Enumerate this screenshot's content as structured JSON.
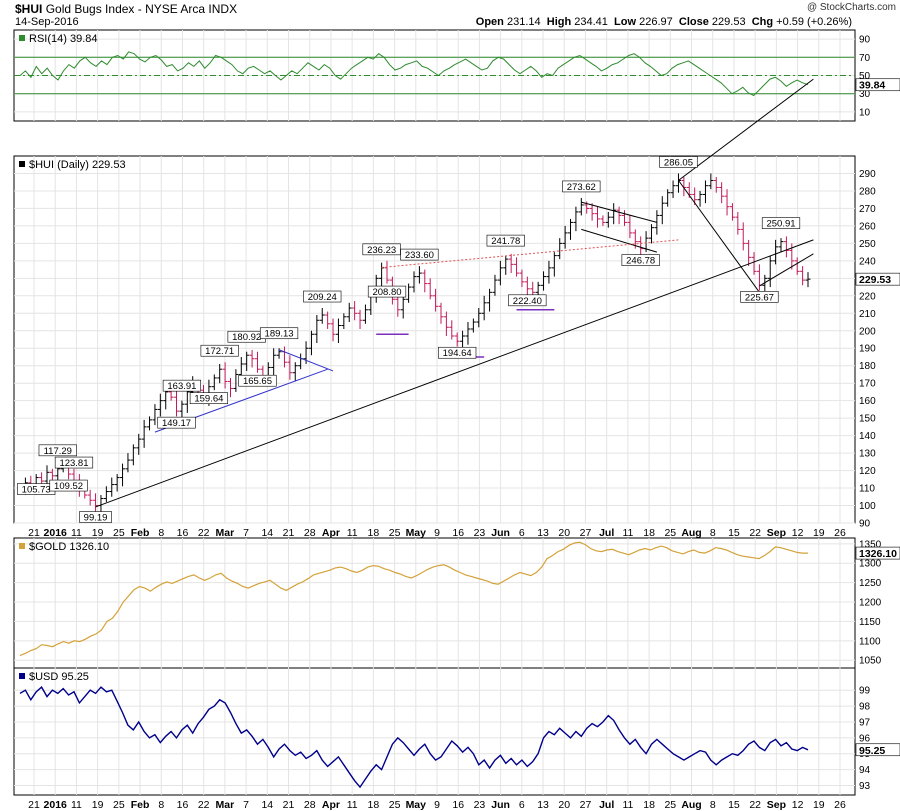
{
  "header": {
    "symbol": "$HUI",
    "name": "Gold Bugs Index - NYSE Arca INDX",
    "date": "14-Sep-2016",
    "open_label": "Open",
    "open": "231.14",
    "high_label": "High",
    "high": "234.41",
    "low_label": "Low",
    "low": "226.97",
    "close_label": "Close",
    "close": "229.53",
    "chg_label": "Chg",
    "chg": "+0.59 (+0.26%)",
    "watermark": "@ StockCharts.com"
  },
  "x_axis": {
    "ticks": [
      "21",
      "2016",
      "11",
      "19",
      "25",
      "Feb",
      "8",
      "16",
      "22",
      "Mar",
      "7",
      "14",
      "21",
      "28",
      "Apr",
      "11",
      "18",
      "25",
      "May",
      "9",
      "16",
      "23",
      "Jun",
      "6",
      "13",
      "20",
      "27",
      "Jul",
      "11",
      "18",
      "25",
      "Aug",
      "8",
      "15",
      "22",
      "Sep",
      "12",
      "19",
      "26"
    ],
    "bold_ticks": [
      "2016",
      "Feb",
      "Mar",
      "Apr",
      "May",
      "Jun",
      "Jul",
      "Aug",
      "Sep"
    ]
  },
  "colors": {
    "rsi": "#2e8b2e",
    "gold": "#d4a23a",
    "usd": "#00008b",
    "up": "#000000",
    "down": "#c2185b",
    "trend": "#000000",
    "blue_line": "#3333cc",
    "purple": "#7b2fbe",
    "red_dotted": "#e05050"
  },
  "chart_data": [
    {
      "type": "line",
      "title": "RSI(14) 39.84",
      "last_label": "39.84",
      "ylim": [
        0,
        100
      ],
      "yticks": [
        10,
        30,
        50,
        70,
        90
      ],
      "levels": [
        70,
        50,
        30
      ],
      "values": [
        50,
        55,
        48,
        60,
        52,
        58,
        50,
        45,
        55,
        62,
        58,
        66,
        70,
        64,
        60,
        66,
        62,
        70,
        72,
        68,
        76,
        74,
        68,
        65,
        70,
        72,
        67,
        60,
        62,
        55,
        58,
        64,
        60,
        66,
        58,
        64,
        72,
        70,
        66,
        62,
        55,
        52,
        58,
        60,
        56,
        52,
        55,
        50,
        45,
        50,
        55,
        52,
        58,
        64,
        60,
        56,
        62,
        58,
        50,
        46,
        52,
        58,
        62,
        66,
        70,
        68,
        74,
        70,
        62,
        56,
        58,
        62,
        64,
        66,
        60,
        58,
        54,
        50,
        55,
        58,
        62,
        65,
        68,
        64,
        60,
        56,
        58,
        66,
        70,
        68,
        62,
        56,
        52,
        56,
        60,
        55,
        48,
        52,
        50,
        58,
        62,
        66,
        70,
        72,
        68,
        64,
        60,
        55,
        58,
        62,
        64,
        68,
        72,
        74,
        70,
        64,
        60,
        55,
        50,
        52,
        58,
        62,
        64,
        66,
        62,
        58,
        54,
        50,
        46,
        42,
        36,
        30,
        33,
        37,
        31,
        28,
        34,
        40,
        46,
        48,
        44,
        38,
        42,
        45,
        42,
        39.84
      ]
    },
    {
      "type": "ohlc",
      "title": "$HUI (Daily) 229.53",
      "last_label": "229.53",
      "ylim": [
        90,
        300
      ],
      "yticks": [
        90,
        100,
        110,
        120,
        130,
        140,
        150,
        160,
        170,
        180,
        190,
        200,
        210,
        220,
        230,
        240,
        250,
        260,
        270,
        280,
        290
      ],
      "closes": [
        109,
        113,
        111,
        116,
        114,
        119,
        117,
        121,
        123,
        118,
        114,
        110,
        106,
        103,
        100,
        104,
        108,
        112,
        116,
        121,
        126,
        133,
        138,
        145,
        149,
        155,
        160,
        165,
        162,
        154,
        158,
        165,
        170,
        166,
        162,
        168,
        173,
        178,
        171,
        167,
        175,
        181,
        186,
        184,
        178,
        174,
        179,
        186,
        188,
        182,
        176,
        180,
        184,
        190,
        198,
        206,
        209,
        204,
        198,
        203,
        208,
        213,
        210,
        206,
        212,
        220,
        230,
        236,
        229,
        218,
        212,
        218,
        225,
        231,
        233,
        227,
        220,
        214,
        208,
        202,
        197,
        194,
        197,
        201,
        205,
        210,
        216,
        222,
        229,
        236,
        241,
        238,
        233,
        228,
        224,
        222,
        226,
        231,
        236,
        243,
        250,
        256,
        262,
        268,
        272,
        270,
        267,
        264,
        262,
        265,
        269,
        266,
        262,
        256,
        251,
        247,
        253,
        259,
        266,
        273,
        279,
        283,
        286,
        282,
        278,
        275,
        278,
        283,
        286,
        282,
        277,
        271,
        265,
        258,
        250,
        242,
        234,
        226,
        230,
        240,
        248,
        251,
        246,
        240,
        234,
        229,
        229.53
      ],
      "labels": [
        {
          "i": 3,
          "text": "105.73",
          "pos": "below"
        },
        {
          "i": 7,
          "text": "117.29",
          "pos": "above"
        },
        {
          "i": 10,
          "text": "123.81",
          "pos": "above"
        },
        {
          "i": 9,
          "text": "109.52",
          "pos": "below"
        },
        {
          "i": 14,
          "text": "99.19",
          "pos": "below"
        },
        {
          "i": 30,
          "text": "163.91",
          "pos": "above"
        },
        {
          "i": 29,
          "text": "149.17",
          "pos": "below"
        },
        {
          "i": 37,
          "text": "172.71",
          "pos": "above"
        },
        {
          "i": 35,
          "text": "159.64",
          "pos": "below"
        },
        {
          "i": 42,
          "text": "180.92",
          "pos": "above"
        },
        {
          "i": 44,
          "text": "165.65",
          "pos": "below"
        },
        {
          "i": 48,
          "text": "189.13",
          "pos": "above"
        },
        {
          "i": 56,
          "text": "209.24",
          "pos": "above"
        },
        {
          "i": 67,
          "text": "236.23",
          "pos": "above"
        },
        {
          "i": 68,
          "text": "208.80",
          "pos": "below"
        },
        {
          "i": 74,
          "text": "233.60",
          "pos": "above"
        },
        {
          "i": 81,
          "text": "194.64",
          "pos": "below"
        },
        {
          "i": 90,
          "text": "241.78",
          "pos": "above"
        },
        {
          "i": 94,
          "text": "222.40",
          "pos": "below"
        },
        {
          "i": 104,
          "text": "273.62",
          "pos": "above"
        },
        {
          "i": 115,
          "text": "246.78",
          "pos": "below"
        },
        {
          "i": 122,
          "text": "286.05",
          "pos": "above"
        },
        {
          "i": 141,
          "text": "250.91",
          "pos": "above"
        },
        {
          "i": 137,
          "text": "225.67",
          "pos": "below"
        }
      ]
    },
    {
      "type": "line",
      "title": "$GOLD 1326.10",
      "last_label": "1326.10",
      "ylim": [
        1030,
        1365
      ],
      "yticks": [
        1050,
        1100,
        1150,
        1200,
        1250,
        1300,
        1350
      ],
      "values": [
        1062,
        1068,
        1075,
        1080,
        1090,
        1088,
        1085,
        1092,
        1098,
        1094,
        1100,
        1098,
        1104,
        1112,
        1118,
        1128,
        1150,
        1158,
        1176,
        1200,
        1216,
        1232,
        1240,
        1236,
        1228,
        1238,
        1246,
        1252,
        1248,
        1254,
        1260,
        1266,
        1270,
        1262,
        1256,
        1262,
        1270,
        1274,
        1262,
        1254,
        1248,
        1240,
        1236,
        1242,
        1248,
        1252,
        1256,
        1246,
        1236,
        1230,
        1238,
        1246,
        1252,
        1260,
        1270,
        1274,
        1278,
        1282,
        1288,
        1290,
        1286,
        1280,
        1276,
        1282,
        1290,
        1294,
        1292,
        1286,
        1282,
        1276,
        1272,
        1266,
        1262,
        1268,
        1276,
        1284,
        1290,
        1294,
        1296,
        1290,
        1282,
        1276,
        1270,
        1266,
        1262,
        1258,
        1254,
        1248,
        1246,
        1254,
        1262,
        1270,
        1276,
        1272,
        1268,
        1276,
        1290,
        1312,
        1320,
        1330,
        1336,
        1346,
        1352,
        1354,
        1348,
        1338,
        1332,
        1330,
        1334,
        1336,
        1330,
        1326,
        1322,
        1328,
        1334,
        1338,
        1334,
        1340,
        1344,
        1340,
        1332,
        1328,
        1324,
        1330,
        1334,
        1328,
        1326,
        1332,
        1340,
        1338,
        1334,
        1328,
        1322,
        1318,
        1316,
        1314,
        1312,
        1320,
        1330,
        1342,
        1340,
        1336,
        1332,
        1328,
        1326,
        1326.1
      ]
    },
    {
      "type": "line",
      "title": "$USD 95.25",
      "last_label": "95.25",
      "ylim": [
        92.4,
        100.4
      ],
      "yticks": [
        93,
        94,
        95,
        96,
        97,
        98,
        99
      ],
      "values": [
        98.8,
        99.0,
        98.4,
        98.9,
        99.2,
        98.6,
        99.0,
        98.8,
        99.1,
        98.7,
        98.9,
        98.2,
        98.6,
        99.0,
        98.8,
        99.2,
        98.9,
        99.0,
        98.3,
        97.6,
        96.8,
        96.5,
        97.0,
        96.4,
        96.0,
        96.2,
        95.7,
        96.1,
        96.4,
        96.0,
        96.5,
        96.8,
        96.3,
        96.9,
        97.3,
        97.8,
        98.0,
        98.4,
        98.2,
        97.6,
        96.9,
        96.3,
        96.5,
        96.1,
        95.6,
        95.9,
        95.4,
        94.8,
        95.3,
        95.6,
        95.2,
        94.9,
        95.1,
        94.7,
        94.9,
        95.2,
        94.6,
        94.2,
        94.5,
        94.8,
        94.3,
        93.8,
        93.3,
        92.9,
        93.4,
        93.9,
        94.3,
        94.0,
        94.8,
        95.6,
        96.0,
        95.7,
        95.3,
        94.9,
        95.3,
        95.6,
        95.0,
        94.6,
        94.8,
        95.3,
        95.8,
        95.5,
        95.1,
        95.4,
        95.0,
        94.3,
        94.6,
        94.1,
        94.6,
        94.9,
        94.4,
        94.7,
        94.3,
        94.6,
        94.2,
        94.5,
        95.0,
        96.0,
        96.4,
        96.2,
        96.6,
        96.3,
        96.0,
        96.4,
        96.1,
        96.6,
        96.9,
        96.7,
        97.0,
        97.4,
        97.1,
        96.5,
        96.0,
        95.6,
        95.9,
        95.4,
        95.0,
        95.6,
        95.9,
        95.6,
        95.3,
        95.0,
        94.8,
        94.6,
        94.8,
        95.0,
        95.2,
        95.1,
        94.6,
        94.3,
        94.6,
        94.8,
        95.0,
        94.9,
        95.2,
        95.6,
        95.8,
        95.4,
        95.2,
        95.7,
        95.9,
        95.5,
        95.7,
        95.3,
        95.2,
        95.4,
        95.25
      ]
    }
  ]
}
